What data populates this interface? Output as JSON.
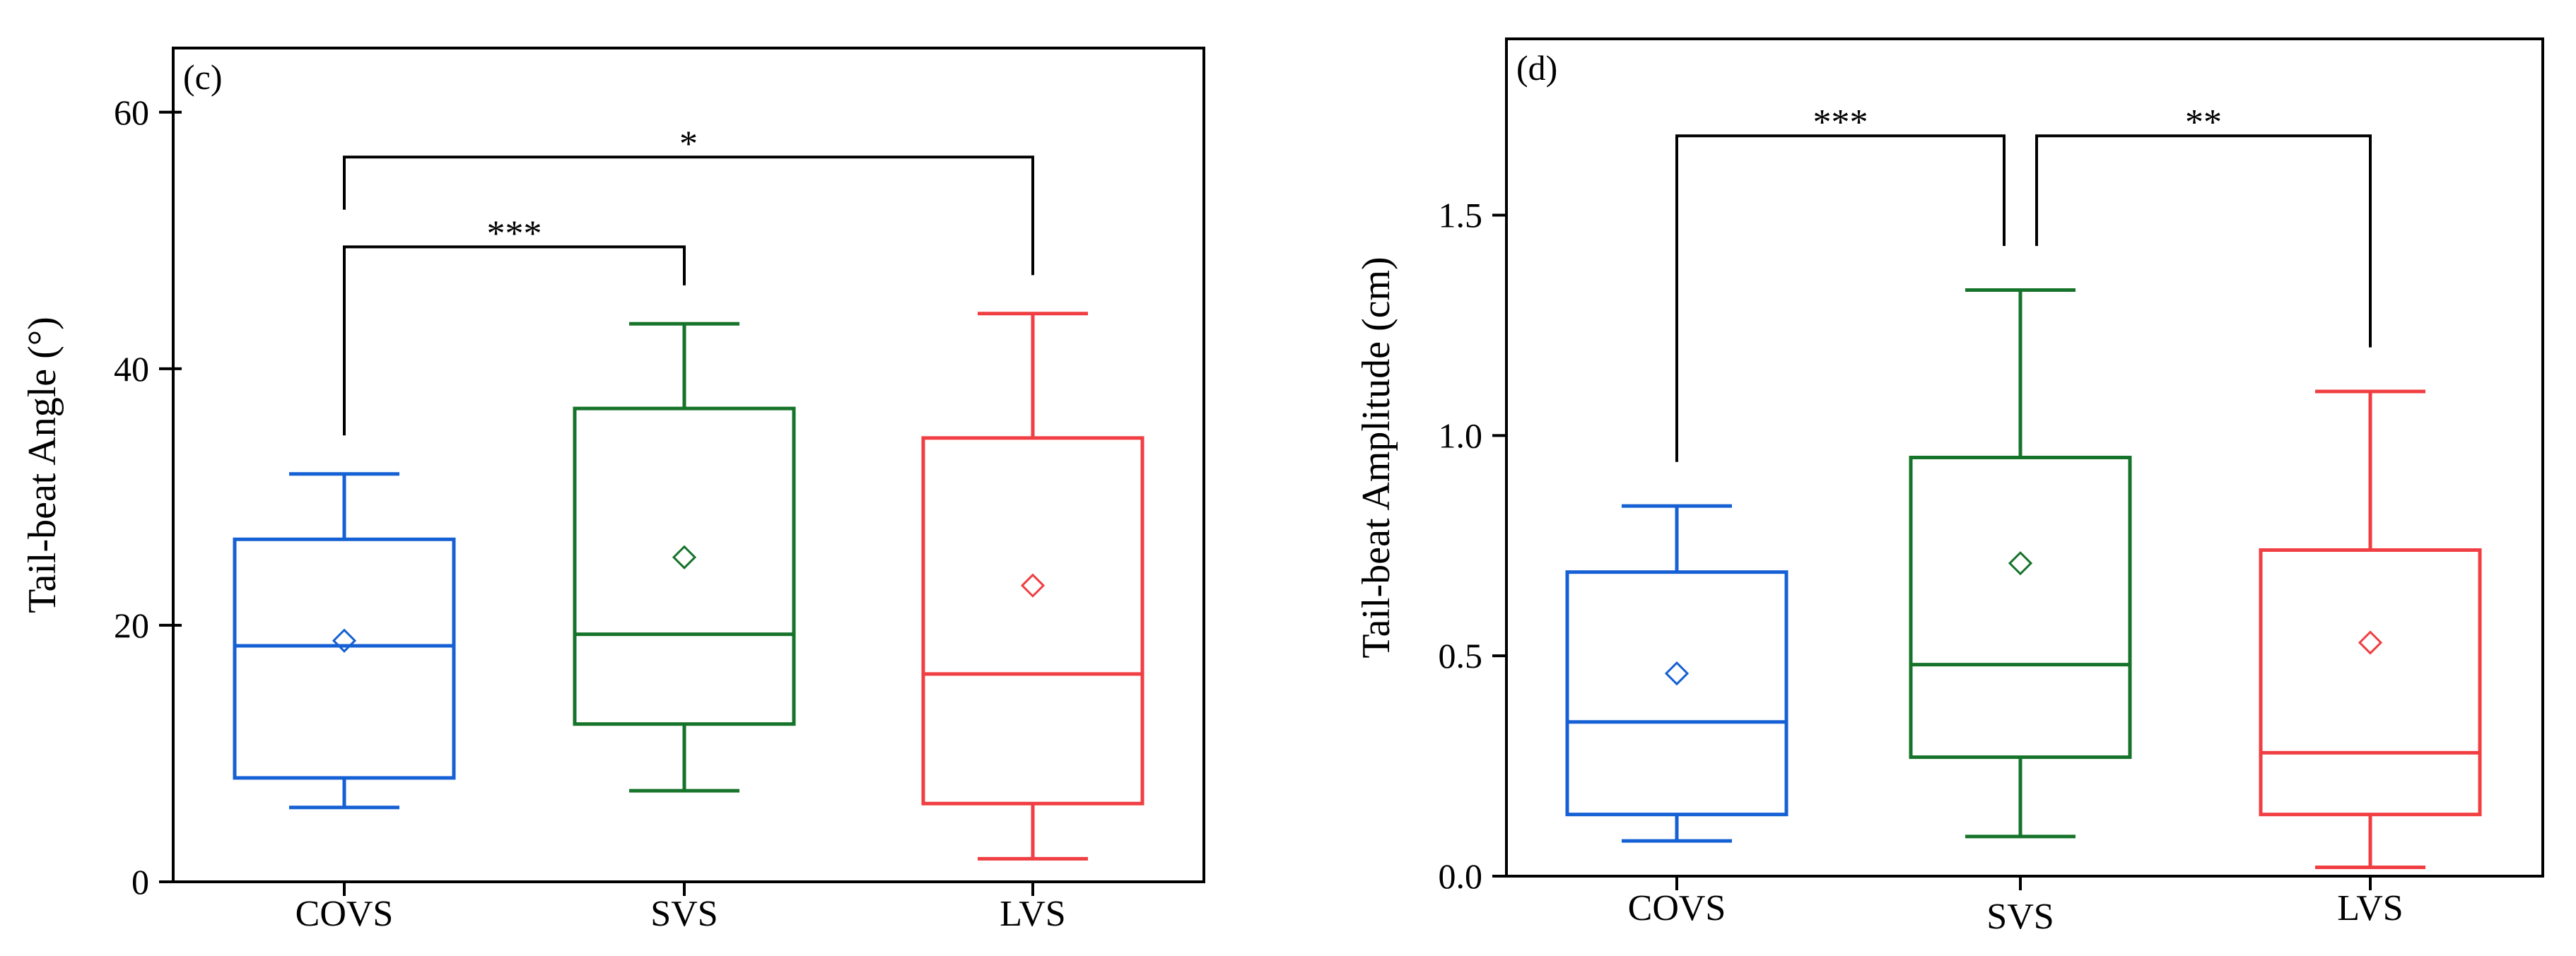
{
  "chart_data": [
    {
      "panel_label": "(c)",
      "type": "box",
      "ylabel": "Tail-beat Angle (°)",
      "ylim": [
        0,
        65
      ],
      "yticks": [
        "0",
        "20",
        "40",
        "60"
      ],
      "ytick_values": [
        0,
        20,
        40,
        60
      ],
      "categories": [
        "COVS",
        "SVS",
        "LVS"
      ],
      "colors": [
        "#1560d4",
        "#16732a",
        "#f03e42"
      ],
      "boxes": [
        {
          "name": "COVS",
          "whisker_low": 5.8,
          "q1": 8.1,
          "median": 18.4,
          "q3": 26.7,
          "whisker_high": 31.8,
          "mean": 18.8
        },
        {
          "name": "SVS",
          "whisker_low": 7.1,
          "q1": 12.3,
          "median": 19.3,
          "q3": 36.9,
          "whisker_high": 43.5,
          "mean": 25.3
        },
        {
          "name": "LVS",
          "whisker_low": 1.8,
          "q1": 6.1,
          "median": 16.2,
          "q3": 34.6,
          "whisker_high": 44.3,
          "mean": 23.1
        }
      ],
      "significance": [
        {
          "from": "COVS",
          "to": "SVS",
          "label": "***",
          "y": 49.5
        },
        {
          "from": "COVS",
          "to": "LVS",
          "label": "*",
          "y": 56.5
        }
      ]
    },
    {
      "panel_label": "(d)",
      "type": "box",
      "ylabel": "Tail-beat Amplitude (cm)",
      "ylim": [
        0,
        1.9
      ],
      "yticks": [
        "0.0",
        "0.5",
        "1.0",
        "1.5"
      ],
      "ytick_values": [
        0,
        0.5,
        1.0,
        1.5
      ],
      "categories": [
        "COVS",
        "SVS",
        "LVS"
      ],
      "colors": [
        "#1560d4",
        "#16732a",
        "#f03e42"
      ],
      "boxes": [
        {
          "name": "COVS",
          "whisker_low": 0.08,
          "q1": 0.14,
          "median": 0.35,
          "q3": 0.69,
          "whisker_high": 0.84,
          "mean": 0.46
        },
        {
          "name": "SVS",
          "whisker_low": 0.09,
          "q1": 0.27,
          "median": 0.48,
          "q3": 0.95,
          "whisker_high": 1.33,
          "mean": 0.71
        },
        {
          "name": "LVS",
          "whisker_low": 0.02,
          "q1": 0.14,
          "median": 0.28,
          "q3": 0.74,
          "whisker_high": 1.1,
          "mean": 0.53
        }
      ],
      "significance": [
        {
          "from": "COVS",
          "to": "SVS",
          "label": "***",
          "y": 1.68
        },
        {
          "from": "SVS",
          "to": "LVS",
          "label": "**",
          "y": 1.68
        }
      ]
    }
  ]
}
